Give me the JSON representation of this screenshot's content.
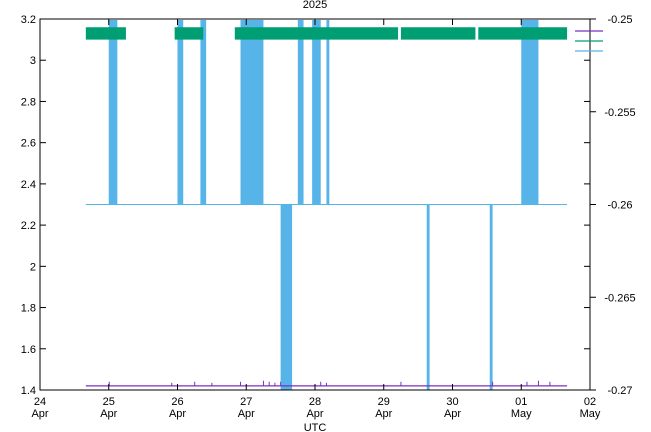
{
  "chart_data": {
    "type": "line",
    "title": "2025",
    "xlabel": "UTC",
    "ylabel": "",
    "y2label": "",
    "xlim": [
      "2025-04-24T00:00",
      "2025-05-02T00:00"
    ],
    "ylim": [
      1.4,
      3.2
    ],
    "y2lim": [
      -0.27,
      -0.25
    ],
    "x_ticks": [
      {
        "t": "2025-04-24T00:00",
        "day": "24",
        "mon": "Apr"
      },
      {
        "t": "2025-04-25T00:00",
        "day": "25",
        "mon": "Apr"
      },
      {
        "t": "2025-04-26T00:00",
        "day": "26",
        "mon": "Apr"
      },
      {
        "t": "2025-04-27T00:00",
        "day": "27",
        "mon": "Apr"
      },
      {
        "t": "2025-04-28T00:00",
        "day": "28",
        "mon": "Apr"
      },
      {
        "t": "2025-04-29T00:00",
        "day": "29",
        "mon": "Apr"
      },
      {
        "t": "2025-04-30T00:00",
        "day": "30",
        "mon": "Apr"
      },
      {
        "t": "2025-05-01T00:00",
        "day": "01",
        "mon": "May"
      },
      {
        "t": "2025-05-02T00:00",
        "day": "02",
        "mon": "May"
      }
    ],
    "y_ticks": [
      "1.4",
      "1.6",
      "1.8",
      "2",
      "2.2",
      "2.4",
      "2.6",
      "2.8",
      "3",
      "3.2"
    ],
    "y2_ticks": [
      "-0.27",
      "-0.265",
      "-0.26",
      "-0.255",
      "-0.25"
    ],
    "grid": false,
    "legend_position": "top-right",
    "series": [
      {
        "color": "#7b2fbf",
        "axis": "y",
        "baseline": 1.42,
        "start": "2025-04-24T16:00",
        "end": "2025-05-01T16:00",
        "blips": [
          {
            "t": "2025-04-25T00:10",
            "y": 1.44
          },
          {
            "t": "2025-04-25T22:00",
            "y": 1.435
          },
          {
            "t": "2025-04-26T06:00",
            "y": 1.44
          },
          {
            "t": "2025-04-26T12:00",
            "y": 1.435
          },
          {
            "t": "2025-04-26T22:00",
            "y": 1.44
          },
          {
            "t": "2025-04-27T06:00",
            "y": 1.445
          },
          {
            "t": "2025-04-27T08:00",
            "y": 1.44
          },
          {
            "t": "2025-04-27T10:00",
            "y": 1.435
          },
          {
            "t": "2025-04-27T12:00",
            "y": 1.44
          },
          {
            "t": "2025-04-28T02:00",
            "y": 1.44
          },
          {
            "t": "2025-04-28T04:00",
            "y": 1.435
          },
          {
            "t": "2025-04-29T06:00",
            "y": 1.44
          },
          {
            "t": "2025-04-30T14:00",
            "y": 1.44
          },
          {
            "t": "2025-05-01T02:00",
            "y": 1.44
          },
          {
            "t": "2025-05-01T06:00",
            "y": 1.445
          },
          {
            "t": "2025-05-01T10:00",
            "y": 1.44
          }
        ]
      },
      {
        "color": "#009e73",
        "axis": "y",
        "band": [
          3.1,
          3.16
        ],
        "start": "2025-04-24T16:00",
        "end": "2025-05-01T16:00",
        "gaps": [
          [
            "2025-04-25T06:00",
            "2025-04-25T23:00"
          ],
          [
            "2025-04-26T09:00",
            "2025-04-26T20:00"
          ],
          [
            "2025-04-29T05:00",
            "2025-04-29T06:00"
          ],
          [
            "2025-04-30T08:00",
            "2025-04-30T09:00"
          ]
        ]
      },
      {
        "color": "#56b4e9",
        "axis": "y2",
        "baseline": -0.26,
        "start": "2025-04-24T16:00",
        "end": "2025-05-01T16:00",
        "high_blocks": [
          [
            "2025-04-25T00:00",
            "2025-04-25T03:00"
          ],
          [
            "2025-04-26T00:00",
            "2025-04-26T02:00"
          ],
          [
            "2025-04-26T08:00",
            "2025-04-26T10:00"
          ],
          [
            "2025-04-26T22:00",
            "2025-04-27T06:00"
          ],
          [
            "2025-04-27T18:00",
            "2025-04-27T20:00"
          ],
          [
            "2025-04-27T23:00",
            "2025-04-28T02:00"
          ],
          [
            "2025-04-28T04:00",
            "2025-04-28T05:00"
          ],
          [
            "2025-05-01T00:00",
            "2025-05-01T06:00"
          ]
        ],
        "low_spikes": [
          {
            "start": "2025-04-27T12:00",
            "end": "2025-04-27T16:00",
            "y": -0.27
          },
          {
            "start": "2025-04-29T15:00",
            "end": "2025-04-29T16:00",
            "y": -0.27
          },
          {
            "start": "2025-04-30T13:00",
            "end": "2025-04-30T14:00",
            "y": -0.27
          }
        ]
      }
    ],
    "legend": [
      {
        "label": "",
        "color": "#7b2fbf"
      },
      {
        "label": "",
        "color": "#009e73"
      },
      {
        "label": "",
        "color": "#56b4e9"
      }
    ]
  }
}
